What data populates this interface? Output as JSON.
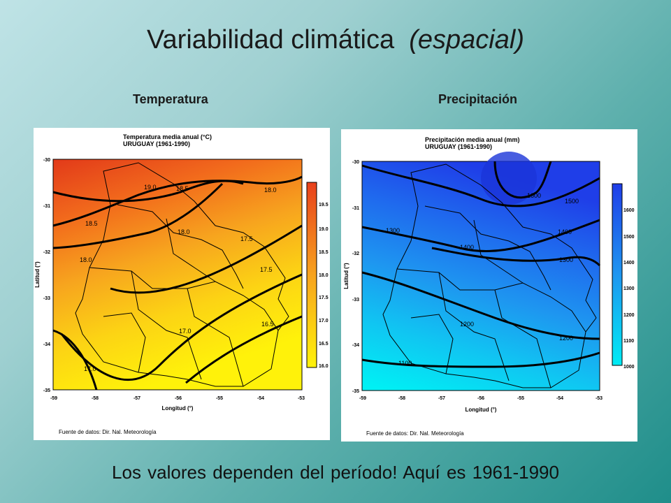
{
  "slide": {
    "title": "Variabilidad climática",
    "title_italic": "(espacial)",
    "footer": "Los valores dependen del período! Aquí es 1961-1990"
  },
  "panels": {
    "temperature": {
      "label": "Temperatura",
      "map_title": "Temperatura media anual (°C)",
      "map_subtitle": "URUGUAY (1961-1990)",
      "colorbar_labels": [
        "19.5",
        "19.0",
        "18.5",
        "18.0",
        "17.5",
        "17.0",
        "16.5",
        "16.0"
      ],
      "contour_labels": [
        "19.0",
        "18.5",
        "18.0",
        "18.5",
        "18.0",
        "18.0",
        "17.5",
        "17.5",
        "17.0",
        "16.5",
        "17.0"
      ],
      "colors": {
        "hot": "#e8401c",
        "mid": "#f7a31e",
        "cool": "#ffee10"
      }
    },
    "precipitation": {
      "label": "Precipitación",
      "map_title": "Precipitación media anual (mm)",
      "map_subtitle": "URUGUAY (1961-1990)",
      "colorbar_labels": [
        "1600",
        "1500",
        "1400",
        "1300",
        "1200",
        "1100",
        "1000"
      ],
      "contour_labels": [
        "1600",
        "1500",
        "1300",
        "1400",
        "1400",
        "1300",
        "1200",
        "1200",
        "1100"
      ],
      "colors": {
        "wet": "#1f3ee8",
        "mid": "#1e96f0",
        "dry": "#00ecf4"
      }
    },
    "axes": {
      "x_ticks": [
        "-59",
        "-58",
        "-57",
        "-56",
        "-55",
        "-54",
        "-53"
      ],
      "y_ticks": [
        "-30",
        "-31",
        "-32",
        "-33",
        "-34",
        "-35"
      ],
      "x_label": "Longitud (°)",
      "y_label": "Latitud (°)",
      "source": "Fuente de datos: Dir. Nal. Meteorología"
    }
  }
}
